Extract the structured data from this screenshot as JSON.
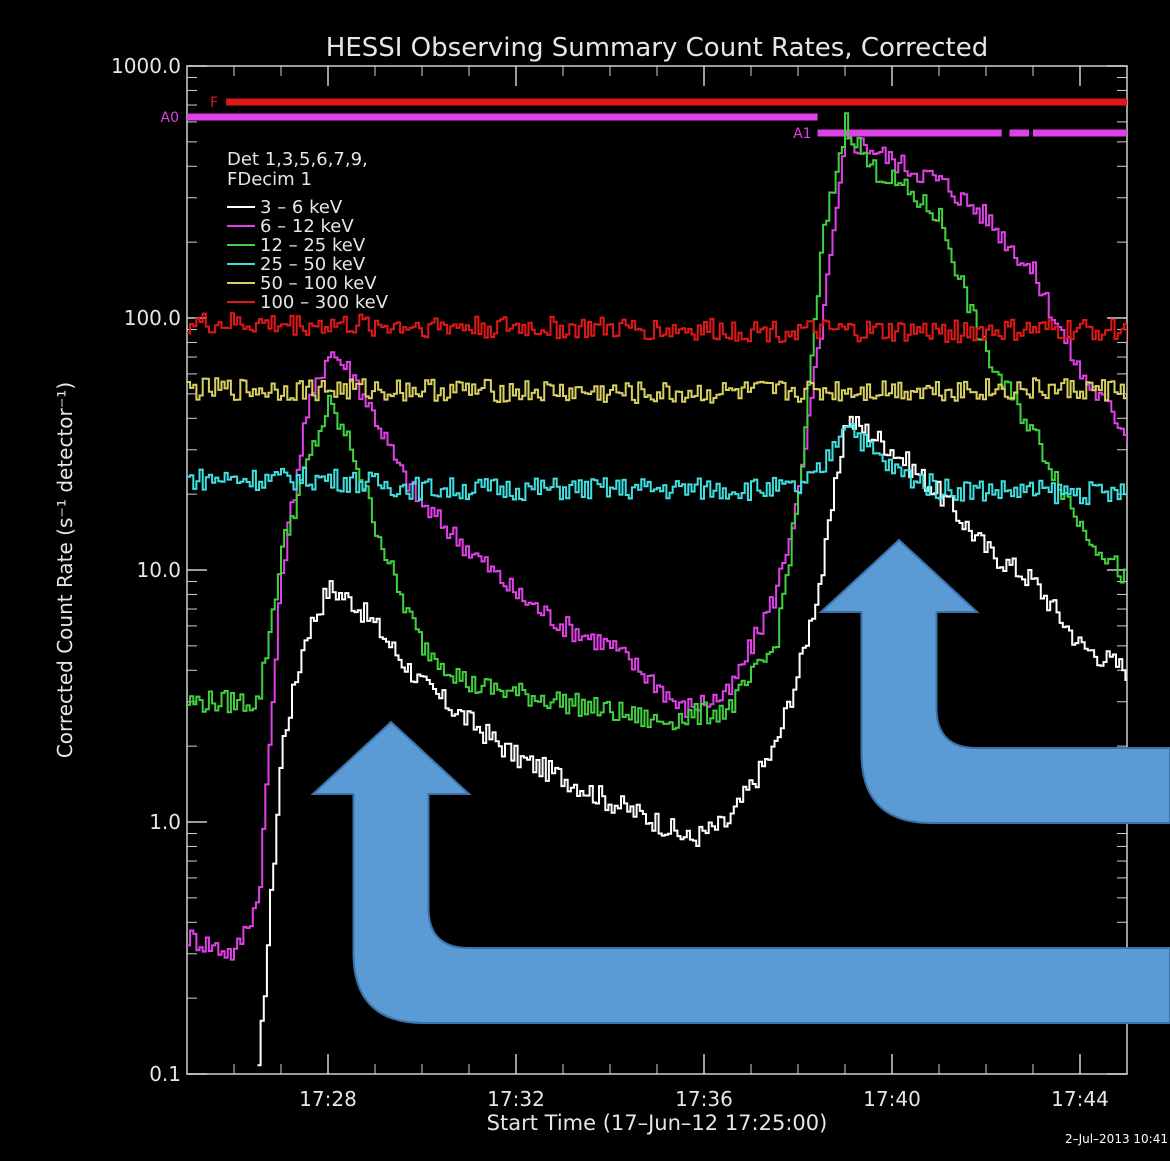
{
  "chart_data": {
    "type": "line",
    "title": "HESSI Observing Summary Count Rates, Corrected",
    "xlabel": "Start Time (17–Jun–12 17:25:00)",
    "ylabel": "Corrected Count Rate (s⁻¹ detector⁻¹)",
    "y_scale": "log",
    "xlim": [
      "17:25:00",
      "17:45:00"
    ],
    "ylim": [
      0.1,
      1000
    ],
    "x_ticks": [
      "17:28",
      "17:32",
      "17:36",
      "17:40",
      "17:44"
    ],
    "y_ticks": [
      "0.1",
      "1.0",
      "10.0",
      "100.0",
      "1000.0"
    ],
    "legend": {
      "placement": "top-left",
      "header": [
        "Det 1,3,5,6,7,9,",
        "FDecim 1"
      ]
    },
    "attenuator_bars": [
      {
        "label": "F",
        "color": "#e01818",
        "segments": [
          [
            "17:25:50",
            "17:45:00"
          ]
        ]
      },
      {
        "label": "A0",
        "color": "#e040e8",
        "segments": [
          [
            "17:25:00",
            "17:38:25"
          ]
        ]
      },
      {
        "label": "A1",
        "color": "#e040e8",
        "segments": [
          [
            "17:38:25",
            "17:42:20"
          ],
          [
            "17:42:30",
            "17:42:55"
          ],
          [
            "17:43:00",
            "17:45:00"
          ]
        ]
      }
    ],
    "series": [
      {
        "name": "3 – 6 keV",
        "color": "#ffffff",
        "points": [
          [
            "17:26:30",
            0.1
          ],
          [
            "17:27:00",
            2.0
          ],
          [
            "17:27:30",
            5.5
          ],
          [
            "17:28:00",
            8.5
          ],
          [
            "17:28:30",
            7.5
          ],
          [
            "17:29:00",
            6.0
          ],
          [
            "17:29:30",
            4.5
          ],
          [
            "17:30:00",
            3.5
          ],
          [
            "17:31:00",
            2.5
          ],
          [
            "17:32:00",
            1.8
          ],
          [
            "17:33:00",
            1.5
          ],
          [
            "17:34:00",
            1.2
          ],
          [
            "17:35:00",
            1.0
          ],
          [
            "17:35:40",
            0.85
          ],
          [
            "17:36:30",
            1.0
          ],
          [
            "17:37:30",
            2.0
          ],
          [
            "17:38:00",
            4.0
          ],
          [
            "17:38:30",
            10.0
          ],
          [
            "17:39:00",
            40.0
          ],
          [
            "17:39:30",
            35.0
          ],
          [
            "17:40:00",
            30.0
          ],
          [
            "17:41:00",
            20.0
          ],
          [
            "17:42:00",
            12.0
          ],
          [
            "17:43:00",
            9.0
          ],
          [
            "17:44:00",
            5.0
          ],
          [
            "17:45:00",
            4.0
          ]
        ]
      },
      {
        "name": "6 – 12 keV",
        "color": "#e040e8",
        "points": [
          [
            "17:25:00",
            0.35
          ],
          [
            "17:26:00",
            0.3
          ],
          [
            "17:26:30",
            0.5
          ],
          [
            "17:27:00",
            10.0
          ],
          [
            "17:27:30",
            40.0
          ],
          [
            "17:28:00",
            75.0
          ],
          [
            "17:28:30",
            60.0
          ],
          [
            "17:29:00",
            40.0
          ],
          [
            "17:29:30",
            25.0
          ],
          [
            "17:30:00",
            18.0
          ],
          [
            "17:31:00",
            12.0
          ],
          [
            "17:32:00",
            8.0
          ],
          [
            "17:33:00",
            6.0
          ],
          [
            "17:34:00",
            5.0
          ],
          [
            "17:35:00",
            3.5
          ],
          [
            "17:35:30",
            2.8
          ],
          [
            "17:36:30",
            3.2
          ],
          [
            "17:37:30",
            8.0
          ],
          [
            "17:38:00",
            20.0
          ],
          [
            "17:38:30",
            100.0
          ],
          [
            "17:39:00",
            500.0
          ],
          [
            "17:39:30",
            480.0
          ],
          [
            "17:40:00",
            420.0
          ],
          [
            "17:41:00",
            350.0
          ],
          [
            "17:42:00",
            250.0
          ],
          [
            "17:43:00",
            150.0
          ],
          [
            "17:44:00",
            60.0
          ],
          [
            "17:45:00",
            35.0
          ]
        ]
      },
      {
        "name": "12 – 25 keV",
        "color": "#40d040",
        "points": [
          [
            "17:25:00",
            3.0
          ],
          [
            "17:26:30",
            3.0
          ],
          [
            "17:27:00",
            12.0
          ],
          [
            "17:27:30",
            25.0
          ],
          [
            "17:28:00",
            45.0
          ],
          [
            "17:28:30",
            30.0
          ],
          [
            "17:29:00",
            15.0
          ],
          [
            "17:29:30",
            8.0
          ],
          [
            "17:30:00",
            5.0
          ],
          [
            "17:31:00",
            3.5
          ],
          [
            "17:33:00",
            3.0
          ],
          [
            "17:35:00",
            2.5
          ],
          [
            "17:36:30",
            2.8
          ],
          [
            "17:37:30",
            5.0
          ],
          [
            "17:38:00",
            20.0
          ],
          [
            "17:38:30",
            200.0
          ],
          [
            "17:39:00",
            600.0
          ],
          [
            "17:39:30",
            400.0
          ],
          [
            "17:40:00",
            350.0
          ],
          [
            "17:41:00",
            250.0
          ],
          [
            "17:41:30",
            130.0
          ],
          [
            "17:42:00",
            70.0
          ],
          [
            "17:43:00",
            35.0
          ],
          [
            "17:44:00",
            15.0
          ],
          [
            "17:45:00",
            9.0
          ]
        ]
      },
      {
        "name": "25 – 50 keV",
        "color": "#40e0e0",
        "points": [
          [
            "17:25:00",
            23.0
          ],
          [
            "17:28:00",
            23.0
          ],
          [
            "17:30:00",
            21.0
          ],
          [
            "17:34:00",
            21.0
          ],
          [
            "17:38:00",
            21.0
          ],
          [
            "17:38:30",
            25.0
          ],
          [
            "17:39:00",
            40.0
          ],
          [
            "17:39:30",
            30.0
          ],
          [
            "17:40:00",
            25.0
          ],
          [
            "17:41:00",
            21.0
          ],
          [
            "17:45:00",
            20.0
          ]
        ]
      },
      {
        "name": "50 – 100 keV",
        "color": "#d8d060",
        "points": [
          [
            "17:25:00",
            52.0
          ],
          [
            "17:30:00",
            52.0
          ],
          [
            "17:35:00",
            50.0
          ],
          [
            "17:40:00",
            52.0
          ],
          [
            "17:45:00",
            52.0
          ]
        ]
      },
      {
        "name": "100 – 300 keV",
        "color": "#e01818",
        "points": [
          [
            "17:25:00",
            95.0
          ],
          [
            "17:30:00",
            93.0
          ],
          [
            "17:35:00",
            90.0
          ],
          [
            "17:40:00",
            88.0
          ],
          [
            "17:45:00",
            90.0
          ]
        ]
      }
    ]
  },
  "timestamp": "2–Jul–2013 10:41",
  "annotations": [
    {
      "kind": "arrow",
      "color": "#5b9bd5",
      "points_to": [
        "17:29:00",
        2.5
      ]
    },
    {
      "kind": "arrow",
      "color": "#5b9bd5",
      "points_to": [
        "17:40:00",
        15.0
      ]
    }
  ]
}
